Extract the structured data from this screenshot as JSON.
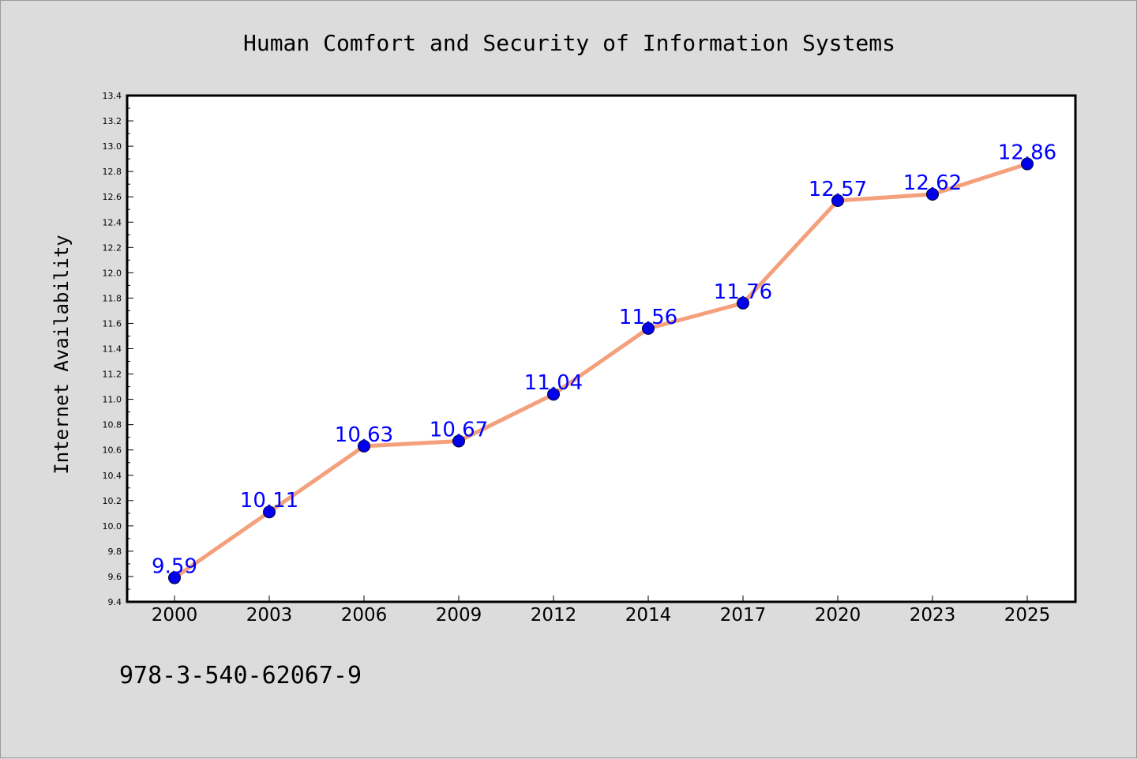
{
  "chart_data": {
    "type": "line",
    "title": "Human Comfort and Security of Information Systems",
    "xlabel": "",
    "ylabel": "Internet Availability",
    "categories": [
      "2000",
      "2003",
      "2006",
      "2009",
      "2012",
      "2014",
      "2017",
      "2020",
      "2023",
      "2025"
    ],
    "series": [
      {
        "values": [
          9.59,
          10.11,
          10.63,
          10.67,
          11.04,
          11.56,
          11.76,
          12.57,
          12.62,
          12.86
        ],
        "line_color": "#f4a07c",
        "marker_color": "#0000ee",
        "label_color": "#0000ff"
      }
    ],
    "data_labels": [
      "9.59",
      "10.11",
      "10.63",
      "10.67",
      "11.04",
      "11.56",
      "11.76",
      "12.57",
      "12.62",
      "12.86"
    ],
    "ylim": [
      9.4,
      13.4
    ],
    "yticks": [
      "9.4",
      "9.6",
      "9.8",
      "10.0",
      "10.2",
      "10.4",
      "10.6",
      "10.8",
      "11.0",
      "11.2",
      "11.4",
      "11.6",
      "11.8",
      "12.0",
      "12.2",
      "12.4",
      "12.6",
      "12.8",
      "13.0",
      "13.2",
      "13.4"
    ],
    "grid": false,
    "legend": "none"
  },
  "footer": {
    "isbn": "978-3-540-62067-9"
  },
  "colors": {
    "background": "#dcdcdc",
    "plot_background": "#ffffff",
    "axis": "#000000"
  }
}
